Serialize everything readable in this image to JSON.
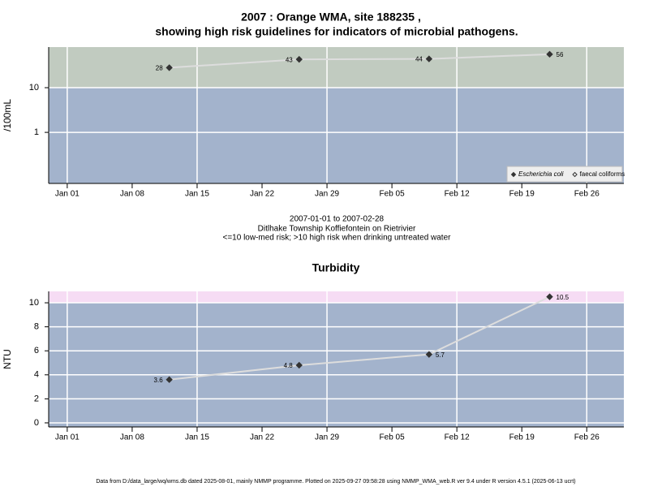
{
  "chart_data": [
    {
      "type": "line",
      "title": "2007 : Orange WMA, site 188235 ,",
      "subtitle": "showing high risk guidelines for indicators of microbial pathogens.",
      "ylabel": "/100mL",
      "log_scale": true,
      "grid": true,
      "x": [
        "Jan 12",
        "Jan 26",
        "Feb 09",
        "Feb 22"
      ],
      "series": [
        {
          "name": "Escherichia coli",
          "color": "#333333",
          "marker": "filled",
          "values": [
            28,
            43,
            44,
            56
          ]
        },
        {
          "name": "faecal coliforms",
          "color": "#333333",
          "marker": "open",
          "values": [
            null,
            null,
            null,
            null
          ]
        }
      ],
      "xlim": [
        "Dec 30",
        "Mar 02"
      ],
      "xticks": [
        "Jan 01",
        "Jan 08",
        "Jan 15",
        "Jan 22",
        "Jan 29",
        "Feb 05",
        "Feb 12",
        "Feb 19",
        "Feb 26"
      ],
      "ylim": [
        0.072,
        81
      ],
      "yticks": [
        1,
        10
      ],
      "guideline": 10,
      "low_color": "#a3b3cc",
      "high_color": "#c1cbc0",
      "line_color": "#dddddd",
      "legend": "bottom-right",
      "caption": [
        "2007-01-01 to 2007-02-28",
        "Ditlhake Township Koffiefontein on Rietrivier",
        "<=10 low-med risk; >10 high risk when drinking untreated water"
      ]
    },
    {
      "type": "line",
      "title": "Turbidity",
      "ylabel": "NTU",
      "grid": true,
      "x": [
        "Jan 12",
        "Jan 26",
        "Feb 09",
        "Feb 22"
      ],
      "series": [
        {
          "name": "Turbidity",
          "color": "#333333",
          "marker": "filled",
          "values": [
            3.6,
            4.8,
            5.7,
            10.5
          ]
        }
      ],
      "xlim": [
        "Dec 30",
        "Mar 02"
      ],
      "xticks": [
        "Jan 01",
        "Jan 08",
        "Jan 15",
        "Jan 22",
        "Jan 29",
        "Feb 05",
        "Feb 12",
        "Feb 19",
        "Feb 26"
      ],
      "ylim": [
        -0.34,
        10.95
      ],
      "yticks": [
        0,
        2,
        4,
        6,
        8,
        10
      ],
      "guideline": 10,
      "low_color": "#a3b3cc",
      "high_color": "#f6dcf4",
      "line_color": "#dddddd"
    }
  ],
  "footer": "Data from D:/data_large/wq/wms.db dated 2025-08-01, mainly NMMP programme. Plotted on 2025-09-27 09:58:28 using NMMP_WMA_web.R ver 9.4 under R version 4.5.1 (2025-06-13 ucrt)"
}
